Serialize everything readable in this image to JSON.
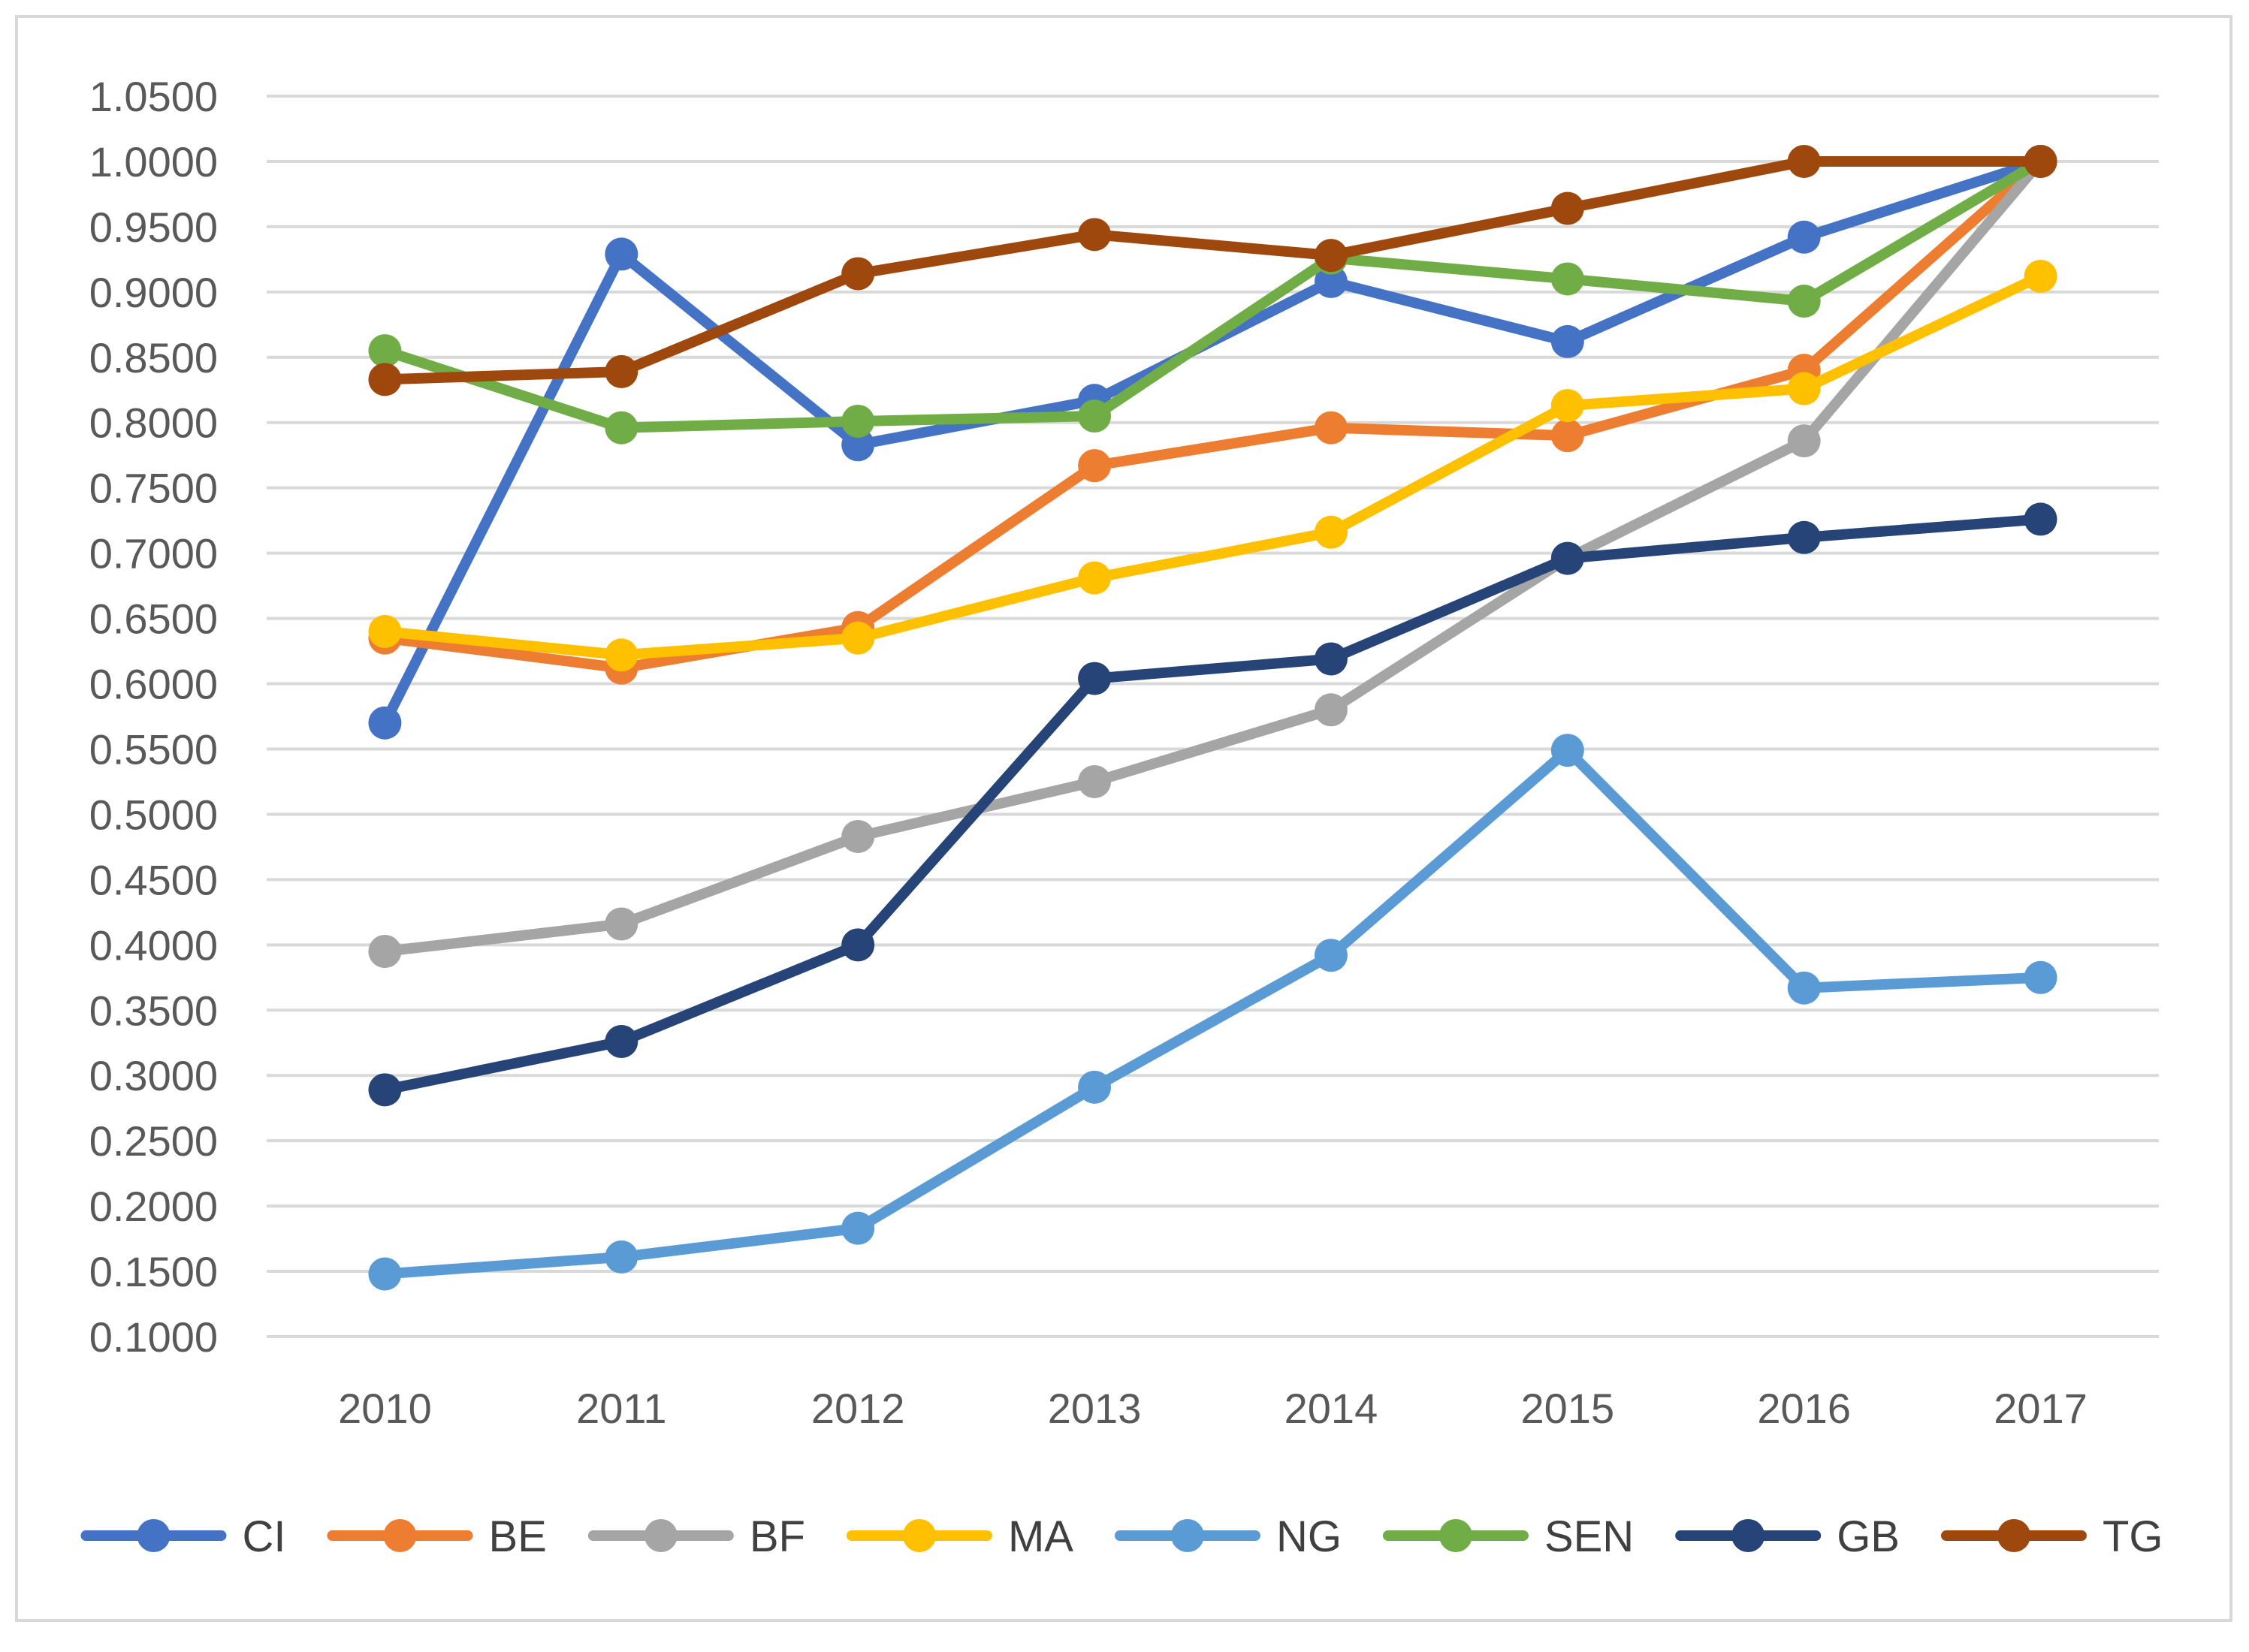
{
  "chart_data": {
    "type": "line",
    "title": "",
    "xlabel": "",
    "ylabel": "",
    "ylim": [
      0.1,
      1.05
    ],
    "ytick_step": 0.05,
    "ytick_decimals": 4,
    "grid": true,
    "legend_position": "bottom",
    "categories": [
      "2010",
      "2011",
      "2012",
      "2013",
      "2014",
      "2015",
      "2016",
      "2017"
    ],
    "series": [
      {
        "name": "CI",
        "color": "#4472c4",
        "values": [
          0.57,
          0.929,
          0.783,
          0.817,
          0.908,
          0.862,
          0.942,
          1.0
        ]
      },
      {
        "name": "BE",
        "color": "#ed7d31",
        "values": [
          0.635,
          0.612,
          0.643,
          0.767,
          0.796,
          0.79,
          0.84,
          1.0
        ]
      },
      {
        "name": "BF",
        "color": "#a5a5a5",
        "values": [
          0.395,
          0.416,
          0.483,
          0.525,
          0.58,
          0.696,
          0.786,
          1.0
        ]
      },
      {
        "name": "MA",
        "color": "#ffc000",
        "values": [
          0.64,
          0.622,
          0.635,
          0.681,
          0.716,
          0.813,
          0.826,
          0.912
        ]
      },
      {
        "name": "NG",
        "color": "#5b9bd5",
        "values": [
          0.148,
          0.161,
          0.183,
          0.291,
          0.392,
          0.549,
          0.367,
          0.375
        ]
      },
      {
        "name": "SEN",
        "color": "#70ad47",
        "values": [
          0.855,
          0.796,
          0.801,
          0.805,
          0.926,
          0.91,
          0.893,
          1.0
        ]
      },
      {
        "name": "GB",
        "color": "#264478",
        "values": [
          0.289,
          0.326,
          0.4,
          0.604,
          0.619,
          0.696,
          0.712,
          0.726
        ]
      },
      {
        "name": "TG",
        "color": "#9e480e",
        "values": [
          0.833,
          0.839,
          0.914,
          0.944,
          0.928,
          0.964,
          1.0,
          1.0
        ]
      }
    ]
  }
}
